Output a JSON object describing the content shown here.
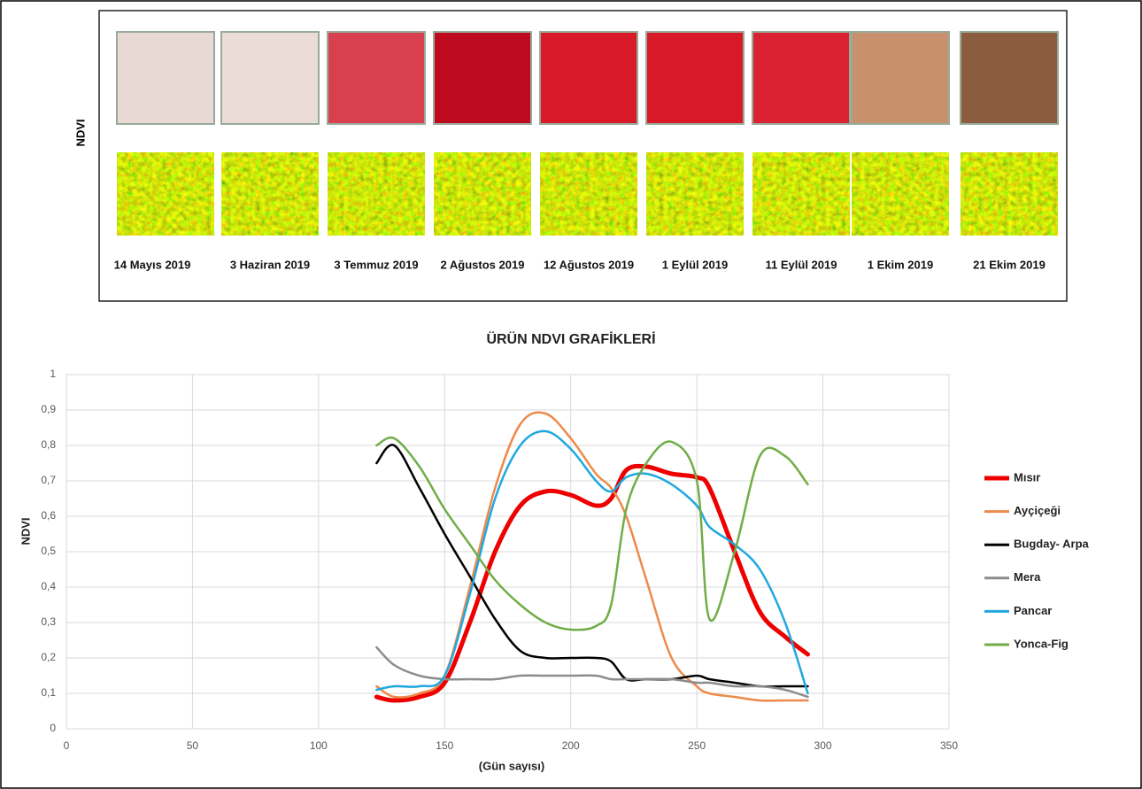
{
  "image_panel": {
    "row_label": "NDVI",
    "dates": [
      "14 Mayıs 2019",
      "3 Haziran 2019",
      "3 Temmuz 2019",
      "2 Ağustos 2019",
      "12 Ağustos 2019",
      "1 Eylül 2019",
      "11 Eylül 2019",
      "1 Ekim 2019",
      "21 Ekim 2019"
    ]
  },
  "chart_data": {
    "type": "line",
    "title": "ÜRÜN NDVI GRAFİKLERİ",
    "x_label": "(Gün sayısı)",
    "y_label": "NDVI",
    "x": [
      123,
      130,
      140,
      150,
      160,
      170,
      180,
      190,
      200,
      210,
      216,
      222,
      230,
      240,
      250,
      255,
      265,
      275,
      285,
      294
    ],
    "series": [
      {
        "name": "Mısır",
        "color": "#ee0000",
        "values": [
          0.09,
          0.08,
          0.09,
          0.13,
          0.3,
          0.5,
          0.63,
          0.67,
          0.66,
          0.63,
          0.65,
          0.73,
          0.74,
          0.72,
          0.71,
          0.68,
          0.5,
          0.33,
          0.26,
          0.21
        ]
      },
      {
        "name": "Ayçiçeği",
        "color": "#ed8a4a",
        "values": [
          0.12,
          0.09,
          0.1,
          0.15,
          0.4,
          0.68,
          0.86,
          0.89,
          0.82,
          0.72,
          0.68,
          0.6,
          0.42,
          0.2,
          0.12,
          0.1,
          0.09,
          0.08,
          0.08,
          0.08
        ]
      },
      {
        "name": "Bugday- Arpa",
        "color": "#000000",
        "values": [
          0.75,
          0.8,
          0.68,
          0.55,
          0.43,
          0.31,
          0.22,
          0.2,
          0.2,
          0.2,
          0.19,
          0.14,
          0.14,
          0.14,
          0.15,
          0.14,
          0.13,
          0.12,
          0.12,
          0.12
        ]
      },
      {
        "name": "Mera",
        "color": "#8c8c8c",
        "values": [
          0.23,
          0.18,
          0.15,
          0.14,
          0.14,
          0.14,
          0.15,
          0.15,
          0.15,
          0.15,
          0.14,
          0.14,
          0.14,
          0.14,
          0.13,
          0.13,
          0.12,
          0.12,
          0.11,
          0.09
        ]
      },
      {
        "name": "Pancar",
        "color": "#1fa8e0",
        "values": [
          0.11,
          0.12,
          0.12,
          0.15,
          0.38,
          0.65,
          0.8,
          0.84,
          0.79,
          0.7,
          0.67,
          0.71,
          0.72,
          0.69,
          0.63,
          0.57,
          0.52,
          0.45,
          0.3,
          0.1
        ]
      },
      {
        "name": "Yonca-Fig",
        "color": "#70ad47",
        "values": [
          0.8,
          0.82,
          0.74,
          0.62,
          0.52,
          0.42,
          0.35,
          0.3,
          0.28,
          0.29,
          0.35,
          0.62,
          0.75,
          0.81,
          0.7,
          0.31,
          0.5,
          0.77,
          0.77,
          0.69
        ]
      }
    ],
    "xlim": [
      0,
      350
    ],
    "xticks": [
      0,
      50,
      100,
      150,
      200,
      250,
      300,
      350
    ],
    "ylim": [
      0,
      1
    ],
    "yticks": [
      0,
      {
        "value": 0.1,
        "label": "0,1"
      },
      {
        "value": 0.2,
        "label": "0,2"
      },
      {
        "value": 0.3,
        "label": "0,3"
      },
      {
        "value": 0.4,
        "label": "0,4"
      },
      {
        "value": 0.5,
        "label": "0,5"
      },
      {
        "value": 0.6,
        "label": "0,6"
      },
      {
        "value": 0.7,
        "label": "0,7"
      },
      {
        "value": 0.8,
        "label": "0,8"
      },
      {
        "value": 0.9,
        "label": "0,9"
      },
      1
    ],
    "grid": true,
    "legend": "right"
  }
}
